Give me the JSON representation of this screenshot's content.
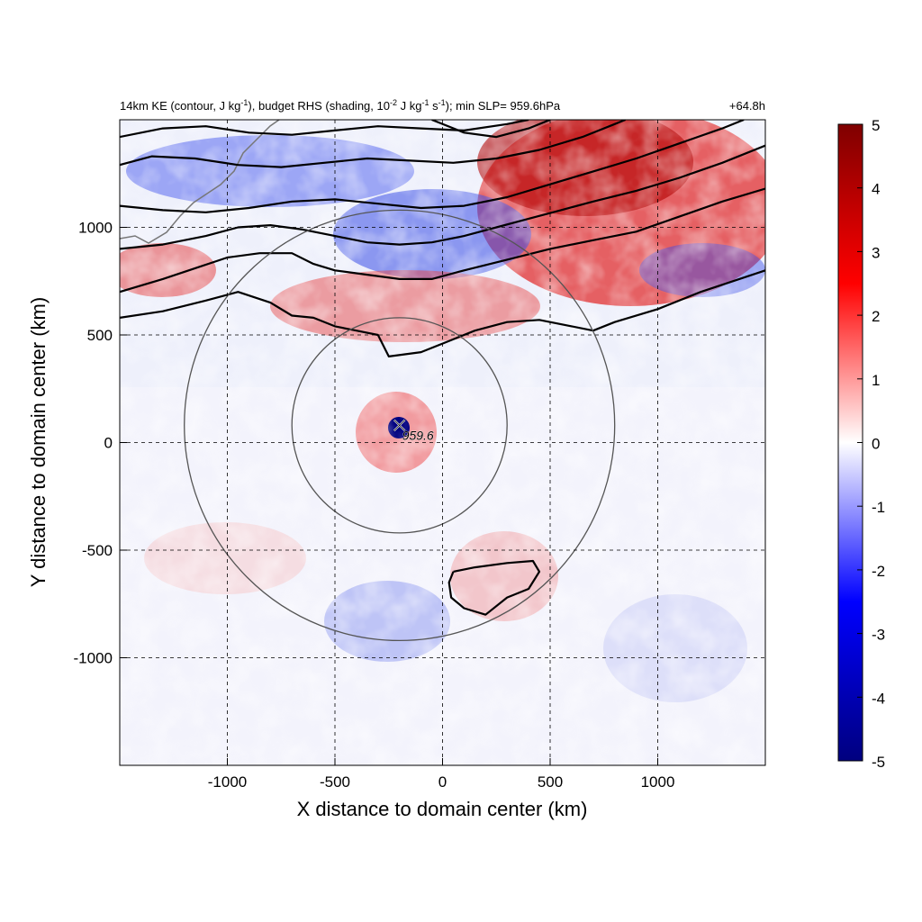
{
  "header": {
    "title_parts": {
      "a": "14km KE (contour, J kg",
      "a_sup": "-1",
      "b": "), budget RHS (shading, 10",
      "b_sup": "-2",
      "c": " J kg",
      "c_sup": "-1",
      "d": " s",
      "d_sup": "-1",
      "e": "); min SLP= 959.6hPa"
    },
    "forecast_time": "+64.8h"
  },
  "chart_data": {
    "type": "heatmap",
    "title": "14km KE (contour, J kg-1), budget RHS (shading, 10-2 J kg-1 s-1); min SLP= 959.6hPa",
    "xlabel": "X distance to domain center (km)",
    "ylabel": "Y distance to domain center (km)",
    "xlim": [
      -1500,
      1500
    ],
    "ylim": [
      -1500,
      1500
    ],
    "xticks": [
      -1000,
      -500,
      0,
      500,
      1000
    ],
    "yticks": [
      -1000,
      -500,
      0,
      500,
      1000
    ],
    "xtick_labels": [
      "-1000",
      "-500",
      "0",
      "500",
      "1000"
    ],
    "ytick_labels": [
      "-1000",
      "-500",
      "0",
      "500",
      "1000"
    ],
    "grid": true,
    "colorbar": {
      "min": -5,
      "max": 5,
      "ticks": [
        "5",
        "4",
        "3",
        "2",
        "1",
        "0",
        "-1",
        "-2",
        "-3",
        "-4",
        "-5"
      ],
      "colors": [
        "#00007f",
        "#0000ff",
        "#ffffff",
        "#ff0000",
        "#7f0000"
      ]
    },
    "storm_center": {
      "x": -200,
      "y": 80,
      "label": "959.6"
    },
    "range_rings_km": [
      {
        "cx": -200,
        "cy": 80,
        "r": 500
      },
      {
        "cx": -200,
        "cy": 80,
        "r": 1000
      }
    ],
    "ke_contours": [
      [
        [
          -1500,
          580
        ],
        [
          -1300,
          610
        ],
        [
          -1100,
          660
        ],
        [
          -950,
          700
        ],
        [
          -800,
          650
        ],
        [
          -700,
          590
        ],
        [
          -600,
          580
        ],
        [
          -500,
          540
        ],
        [
          -400,
          520
        ],
        [
          -300,
          500
        ],
        [
          -250,
          400
        ],
        [
          -100,
          420
        ],
        [
          0,
          460
        ],
        [
          150,
          520
        ],
        [
          300,
          560
        ],
        [
          450,
          570
        ],
        [
          600,
          540
        ],
        [
          700,
          520
        ],
        [
          800,
          560
        ],
        [
          1000,
          620
        ],
        [
          1200,
          700
        ],
        [
          1500,
          800
        ]
      ],
      [
        [
          -1500,
          700
        ],
        [
          -1300,
          760
        ],
        [
          -1150,
          810
        ],
        [
          -1000,
          860
        ],
        [
          -850,
          880
        ],
        [
          -700,
          880
        ],
        [
          -600,
          830
        ],
        [
          -500,
          800
        ],
        [
          -350,
          780
        ],
        [
          -200,
          760
        ],
        [
          -50,
          760
        ],
        [
          100,
          800
        ],
        [
          300,
          850
        ],
        [
          500,
          900
        ],
        [
          700,
          940
        ],
        [
          900,
          980
        ],
        [
          1100,
          1050
        ],
        [
          1300,
          1120
        ],
        [
          1500,
          1180
        ]
      ],
      [
        [
          -1500,
          900
        ],
        [
          -1300,
          920
        ],
        [
          -1100,
          960
        ],
        [
          -950,
          1000
        ],
        [
          -800,
          1010
        ],
        [
          -650,
          990
        ],
        [
          -500,
          960
        ],
        [
          -350,
          930
        ],
        [
          -200,
          920
        ],
        [
          -50,
          930
        ],
        [
          100,
          960
        ],
        [
          250,
          1000
        ],
        [
          400,
          1040
        ],
        [
          550,
          1080
        ],
        [
          700,
          1120
        ],
        [
          900,
          1170
        ],
        [
          1100,
          1230
        ],
        [
          1300,
          1300
        ],
        [
          1500,
          1380
        ]
      ],
      [
        [
          -1500,
          1100
        ],
        [
          -1300,
          1080
        ],
        [
          -1100,
          1070
        ],
        [
          -900,
          1090
        ],
        [
          -700,
          1120
        ],
        [
          -500,
          1130
        ],
        [
          -300,
          1110
        ],
        [
          -100,
          1090
        ],
        [
          100,
          1100
        ],
        [
          300,
          1140
        ],
        [
          500,
          1200
        ],
        [
          700,
          1260
        ],
        [
          900,
          1320
        ],
        [
          1100,
          1390
        ],
        [
          1300,
          1460
        ],
        [
          1400,
          1500
        ]
      ],
      [
        [
          -1500,
          1290
        ],
        [
          -1350,
          1330
        ],
        [
          -1150,
          1320
        ],
        [
          -950,
          1290
        ],
        [
          -750,
          1280
        ],
        [
          -550,
          1300
        ],
        [
          -350,
          1320
        ],
        [
          -150,
          1310
        ],
        [
          50,
          1300
        ],
        [
          250,
          1320
        ],
        [
          450,
          1360
        ],
        [
          650,
          1420
        ],
        [
          800,
          1480
        ],
        [
          850,
          1500
        ]
      ],
      [
        [
          -1500,
          1420
        ],
        [
          -1300,
          1460
        ],
        [
          -1100,
          1470
        ],
        [
          -900,
          1440
        ],
        [
          -700,
          1430
        ],
        [
          -500,
          1450
        ],
        [
          -300,
          1470
        ],
        [
          -100,
          1460
        ],
        [
          100,
          1450
        ],
        [
          300,
          1480
        ],
        [
          400,
          1500
        ]
      ],
      [
        [
          -50,
          1500
        ],
        [
          100,
          1440
        ],
        [
          250,
          1420
        ],
        [
          400,
          1460
        ],
        [
          500,
          1500
        ]
      ],
      [
        [
          50,
          -600
        ],
        [
          150,
          -580
        ],
        [
          300,
          -560
        ],
        [
          420,
          -550
        ],
        [
          450,
          -600
        ],
        [
          400,
          -680
        ],
        [
          300,
          -720
        ],
        [
          200,
          -800
        ],
        [
          100,
          -770
        ],
        [
          40,
          -720
        ],
        [
          30,
          -650
        ],
        [
          50,
          -600
        ]
      ]
    ]
  }
}
